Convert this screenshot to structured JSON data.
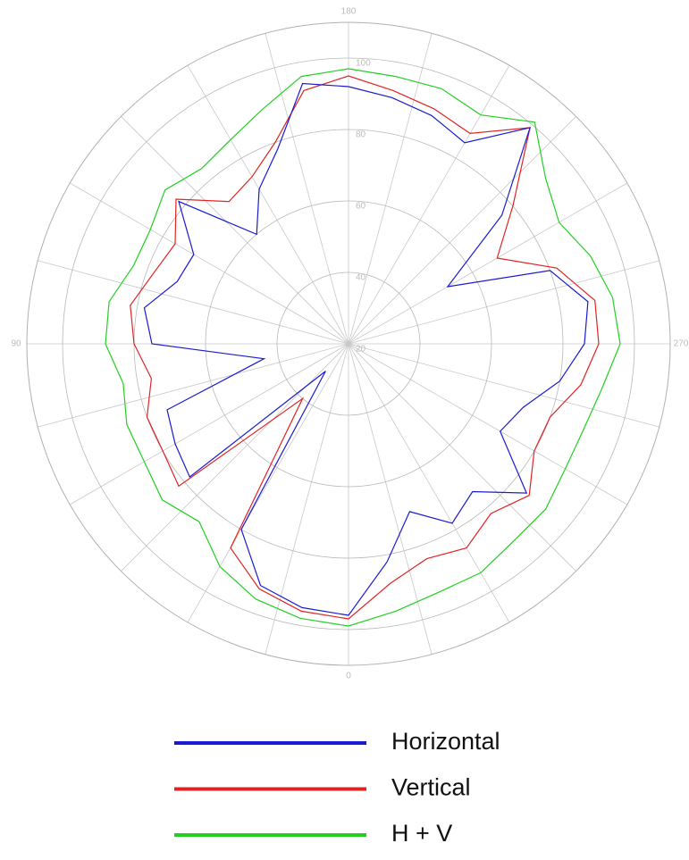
{
  "chart_data": {
    "type": "polar",
    "theta": [
      0,
      10,
      20,
      30,
      40,
      50,
      60,
      70,
      80,
      90,
      100,
      110,
      120,
      130,
      140,
      150,
      160,
      170,
      180,
      190,
      200,
      210,
      220,
      230,
      240,
      250,
      260,
      270,
      280,
      290,
      300,
      310,
      320,
      330,
      340,
      350
    ],
    "series": [
      {
        "name": "Horizontal",
        "color": "#1a1ad0",
        "values": [
          96,
          95,
          92,
          80,
          30,
          78,
          76,
          74,
          44,
          75,
          78,
          71,
          70,
          82,
          60,
          70,
          78,
          94,
          92,
          90,
          88,
          85,
          99,
          76,
          52,
          80,
          88,
          86,
          80,
          72,
          69,
          85,
          74,
          78,
          70,
          82
        ]
      },
      {
        "name": "Vertical",
        "color": "#e02424",
        "values": [
          97,
          96,
          93,
          86,
          40,
          82,
          80,
          80,
          76,
          80,
          82,
          78,
          76,
          83,
          72,
          74,
          80,
          92,
          95,
          92,
          90,
          88,
          99,
          80,
          68,
          82,
          90,
          90,
          86,
          80,
          80,
          86,
          82,
          86,
          84,
          88
        ]
      },
      {
        "name": "H + V",
        "color": "#22d022",
        "values": [
          99,
          98,
          96,
          92,
          85,
          88,
          86,
          86,
          84,
          88,
          88,
          84,
          84,
          87,
          84,
          86,
          90,
          96,
          97,
          96,
          96,
          94,
          101,
          92,
          88,
          92,
          95,
          96,
          92,
          90,
          90,
          92,
          92,
          94,
          94,
          96
        ]
      }
    ],
    "rlim": [
      20,
      110
    ],
    "rticks": [
      20,
      40,
      60,
      80,
      100
    ],
    "thetaticks": [
      0,
      90,
      180,
      270
    ]
  }
}
